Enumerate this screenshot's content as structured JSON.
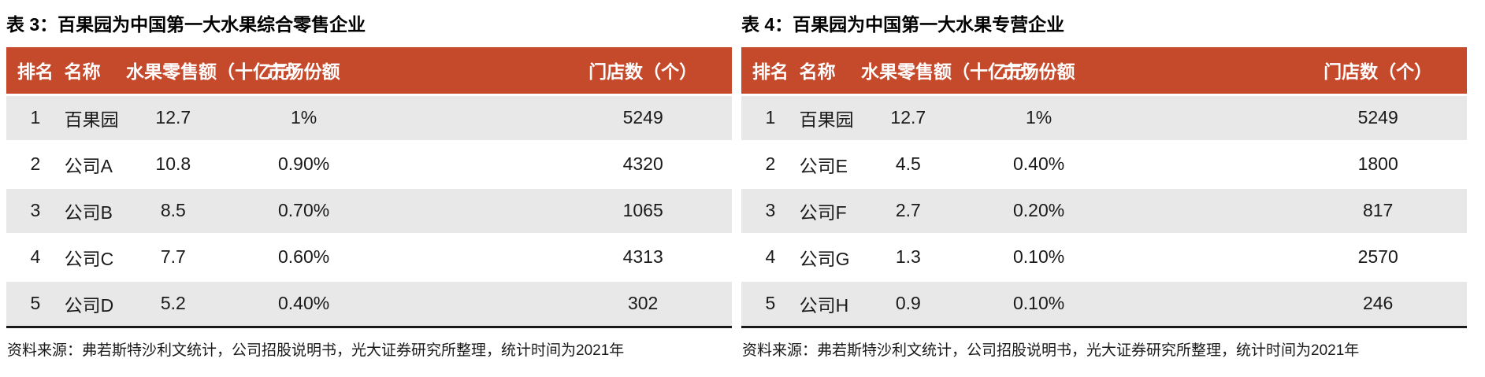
{
  "colors": {
    "header_bg": "#C5492B",
    "header_fg": "#FFFFFF",
    "row_alt_bg": "#E8E8E8",
    "row_bg": "#FFFFFF",
    "rule_color": "#1A1A1A",
    "text_color": "#1A1A1A"
  },
  "tables": [
    {
      "title": "表 3：百果园为中国第一大水果综合零售企业",
      "columns": [
        "排名",
        "名称",
        "水果零售额（十亿元）",
        "市场份额",
        "门店数（个）"
      ],
      "rows": [
        [
          "1",
          "百果园",
          "12.7",
          "1%",
          "5249"
        ],
        [
          "2",
          "公司A",
          "10.8",
          "0.90%",
          "4320"
        ],
        [
          "3",
          "公司B",
          "8.5",
          "0.70%",
          "1065"
        ],
        [
          "4",
          "公司C",
          "7.7",
          "0.60%",
          "4313"
        ],
        [
          "5",
          "公司D",
          "5.2",
          "0.40%",
          "302"
        ]
      ],
      "source": "资料来源：弗若斯特沙利文统计，公司招股说明书，光大证券研究所整理，统计时间为2021年"
    },
    {
      "title": "表 4：百果园为中国第一大水果专营企业",
      "columns": [
        "排名",
        "名称",
        "水果零售额（十亿元）",
        "市场份额",
        "门店数（个）"
      ],
      "rows": [
        [
          "1",
          "百果园",
          "12.7",
          "1%",
          "5249"
        ],
        [
          "2",
          "公司E",
          "4.5",
          "0.40%",
          "1800"
        ],
        [
          "3",
          "公司F",
          "2.7",
          "0.20%",
          "817"
        ],
        [
          "4",
          "公司G",
          "1.3",
          "0.10%",
          "2570"
        ],
        [
          "5",
          "公司H",
          "0.9",
          "0.10%",
          "246"
        ]
      ],
      "source": "资料来源：弗若斯特沙利文统计，公司招股说明书，光大证券研究所整理，统计时间为2021年"
    }
  ]
}
